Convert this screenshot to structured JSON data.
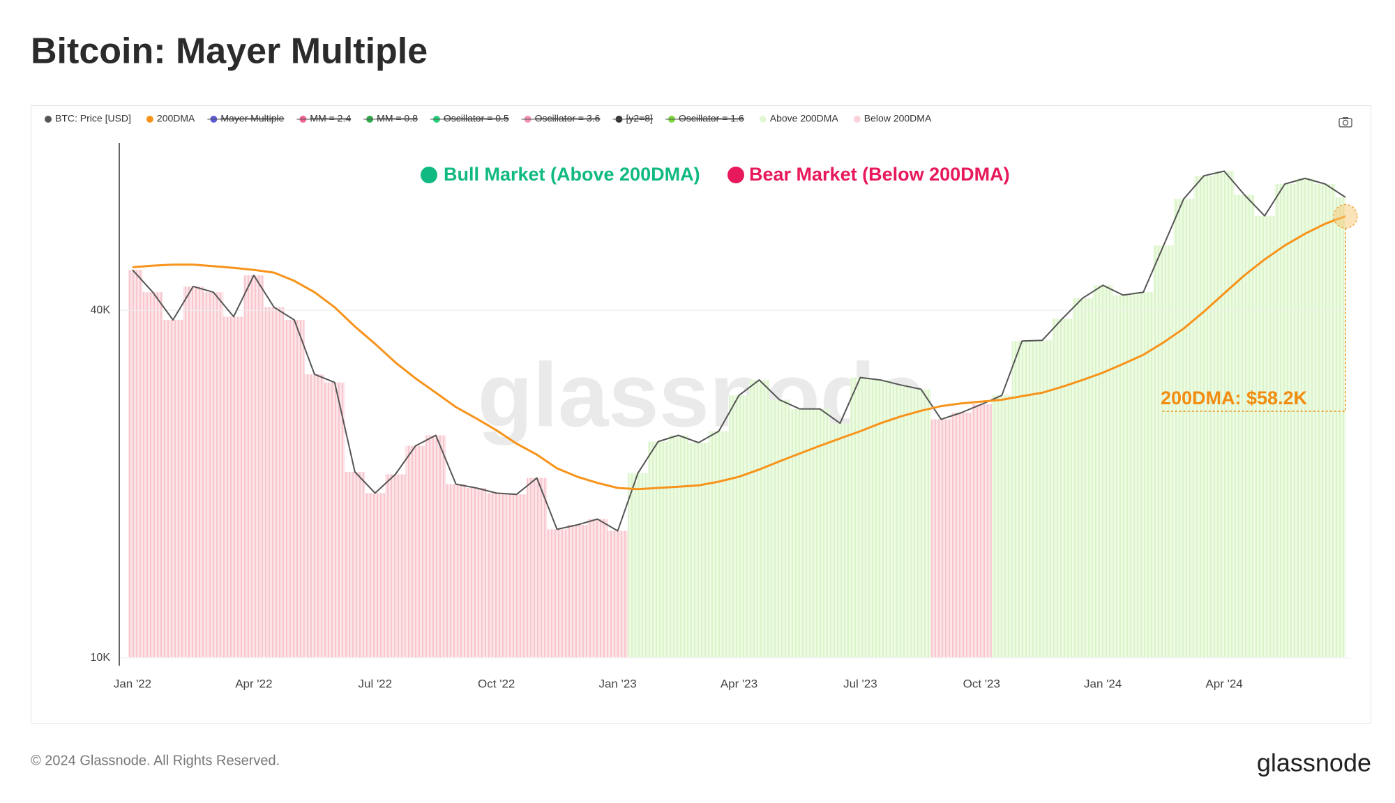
{
  "title": "Bitcoin: Mayer Multiple",
  "footer": "© 2024 Glassnode. All Rights Reserved.",
  "logo": "glassnode",
  "chart_data": {
    "type": "line",
    "watermark": "glassnode",
    "annotations": [
      {
        "text": "Bull Market (Above 200DMA)",
        "color": "#10b981"
      },
      {
        "text": "Bear Market (Below 200DMA)",
        "color": "#e8195a"
      },
      {
        "text": "200DMA: $58.2K",
        "color": "#f28c0f"
      }
    ],
    "categories": [
      "Jan '22",
      null,
      null,
      null,
      null,
      null,
      "Apr '22",
      null,
      null,
      null,
      null,
      null,
      "Jul '22",
      null,
      null,
      null,
      null,
      null,
      "Oct '22",
      null,
      null,
      null,
      null,
      null,
      "Jan '23",
      null,
      null,
      null,
      null,
      null,
      "Apr '23",
      null,
      null,
      null,
      null,
      null,
      "Jul '23",
      null,
      null,
      null,
      null,
      null,
      "Oct '23",
      null,
      null,
      null,
      null,
      null,
      "Jan '24",
      null,
      null,
      null,
      null,
      null,
      "Apr '24",
      null,
      null,
      null,
      null,
      null,
      null
    ],
    "series": [
      {
        "name": "BTC: Price [USD]",
        "color": "#555555",
        "values": [
          47000,
          43000,
          38500,
          44000,
          43000,
          39000,
          46000,
          40500,
          38500,
          31000,
          30000,
          21000,
          19300,
          20800,
          23300,
          24300,
          20000,
          19700,
          19300,
          19200,
          20500,
          16700,
          17000,
          17400,
          16600,
          20900,
          23700,
          24300,
          23600,
          24700,
          28500,
          30300,
          28000,
          27000,
          27000,
          25500,
          30600,
          30300,
          29700,
          29200,
          25900,
          26600,
          27500,
          28500,
          35400,
          35500,
          38700,
          42000,
          44200,
          42500,
          43000,
          51800,
          62400,
          68400,
          69700,
          63400,
          58300,
          66200,
          67700,
          66200,
          62800
        ]
      },
      {
        "name": "200DMA",
        "color": "#f7931a",
        "values": [
          47500,
          47800,
          48000,
          48000,
          47700,
          47400,
          47000,
          46500,
          45000,
          43000,
          40500,
          37500,
          35000,
          32500,
          30500,
          28800,
          27200,
          26000,
          24800,
          23500,
          22500,
          21300,
          20600,
          20100,
          19700,
          19600,
          19700,
          19800,
          19900,
          20200,
          20600,
          21200,
          21900,
          22600,
          23300,
          24000,
          24700,
          25500,
          26200,
          26800,
          27300,
          27600,
          27800,
          28000,
          28400,
          28800,
          29500,
          30300,
          31200,
          32300,
          33500,
          35200,
          37200,
          39800,
          42800,
          46000,
          49000,
          51800,
          54300,
          56500,
          58200
        ]
      }
    ],
    "legend_extra": [
      {
        "name": "Mayer Multiple",
        "color": "#5b5bd6",
        "hidden": true
      },
      {
        "name": "MM = 2.4",
        "color": "#f06292",
        "hidden": true
      },
      {
        "name": "MM = 0.8",
        "color": "#2eaa4a",
        "hidden": true
      },
      {
        "name": "Oscillator = 0.5",
        "color": "#26d07c",
        "hidden": true
      },
      {
        "name": "Oscillator = 3.6",
        "color": "#f48fb1",
        "hidden": true
      },
      {
        "name": "[y2=8]",
        "color": "#333333",
        "hidden": true
      },
      {
        "name": "Oscillator = 1.6",
        "color": "#7cd63a",
        "hidden": true
      },
      {
        "name": "Above 200DMA",
        "color": "#e2f7d3",
        "hidden": false
      },
      {
        "name": "Below 200DMA",
        "color": "#fbd0d8",
        "hidden": false
      }
    ],
    "ylim": [
      9750,
      78000
    ],
    "log_y": true,
    "yticks": [
      {
        "value": 10000,
        "label": "10K"
      },
      {
        "value": 40000,
        "label": "40K"
      }
    ],
    "grid": true
  }
}
